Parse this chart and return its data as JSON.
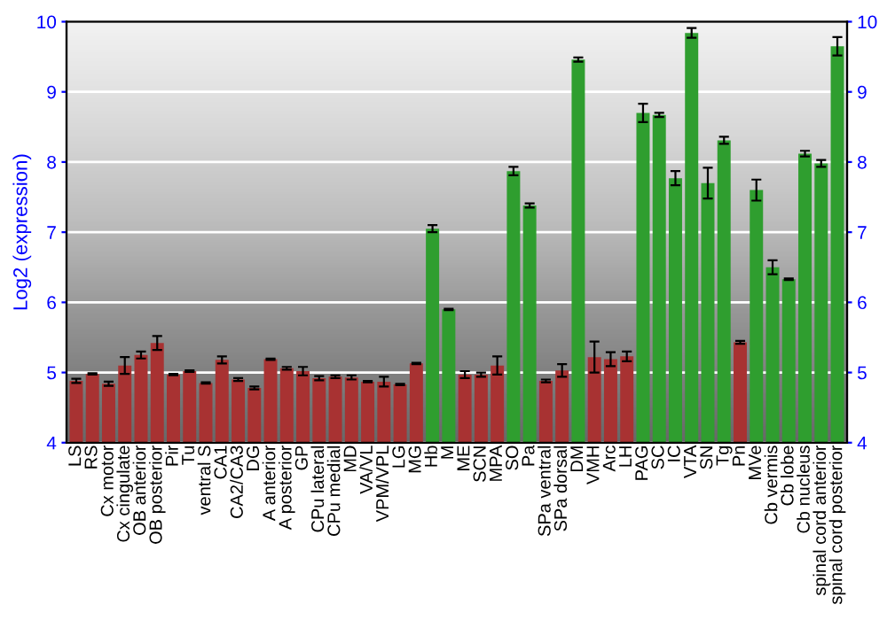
{
  "chart_data": {
    "type": "bar",
    "ylabel": "Log2 (expression)",
    "categories": [
      "LS",
      "RS",
      "Cx motor",
      "Cx cingulate",
      "OB anterior",
      "OB posterior",
      "Pir",
      "Tu",
      "ventral S",
      "CA1",
      "CA2/CA3",
      "DG",
      "A anterior",
      "A posterior",
      "GP",
      "CPu lateral",
      "CPu medial",
      "MD",
      "VA/VL",
      "VPM/VPL",
      "LG",
      "MG",
      "Hb",
      "M",
      "ME",
      "SCN",
      "MPA",
      "SO",
      "Pa",
      "SPa ventral",
      "SPa dorsal",
      "DM",
      "VMH",
      "Arc",
      "LH",
      "PAG",
      "SC",
      "IC",
      "VTA",
      "SN",
      "Tg",
      "Pn",
      "MVe",
      "Cb vermis",
      "Cb lobe",
      "Cb nucleus",
      "spinal cord anterior",
      "spinal cord posterior"
    ],
    "values": [
      4.88,
      4.98,
      4.84,
      5.1,
      5.25,
      5.42,
      4.97,
      5.02,
      4.85,
      5.18,
      4.9,
      4.78,
      5.19,
      5.06,
      5.02,
      4.92,
      4.94,
      4.93,
      4.87,
      4.87,
      4.83,
      5.13,
      7.05,
      5.9,
      4.97,
      4.97,
      5.1,
      7.87,
      7.38,
      4.88,
      5.03,
      9.46,
      5.22,
      5.19,
      5.23,
      8.7,
      8.67,
      7.77,
      9.84,
      7.7,
      8.31,
      5.43,
      7.6,
      6.5,
      6.33,
      8.12,
      7.98,
      9.65
    ],
    "errors": [
      0.03,
      0.01,
      0.03,
      0.12,
      0.05,
      0.1,
      0.01,
      0.01,
      0.01,
      0.05,
      0.02,
      0.02,
      0.01,
      0.02,
      0.06,
      0.03,
      0.02,
      0.03,
      0.01,
      0.07,
      0.01,
      0.01,
      0.05,
      0.01,
      0.05,
      0.03,
      0.13,
      0.06,
      0.03,
      0.02,
      0.09,
      0.03,
      0.22,
      0.1,
      0.07,
      0.13,
      0.03,
      0.1,
      0.07,
      0.22,
      0.05,
      0.02,
      0.15,
      0.1,
      0.01,
      0.04,
      0.05,
      0.13
    ],
    "colors": [
      "#a83232",
      "#a83232",
      "#a83232",
      "#a83232",
      "#a83232",
      "#a83232",
      "#a83232",
      "#a83232",
      "#a83232",
      "#a83232",
      "#a83232",
      "#a83232",
      "#a83232",
      "#a83232",
      "#a83232",
      "#a83232",
      "#a83232",
      "#a83232",
      "#a83232",
      "#a83232",
      "#a83232",
      "#a83232",
      "#2f9e2f",
      "#2f9e2f",
      "#a83232",
      "#a83232",
      "#a83232",
      "#2f9e2f",
      "#2f9e2f",
      "#a83232",
      "#a83232",
      "#2f9e2f",
      "#a83232",
      "#a83232",
      "#a83232",
      "#2f9e2f",
      "#2f9e2f",
      "#2f9e2f",
      "#2f9e2f",
      "#2f9e2f",
      "#2f9e2f",
      "#a83232",
      "#2f9e2f",
      "#2f9e2f",
      "#2f9e2f",
      "#2f9e2f",
      "#2f9e2f",
      "#2f9e2f"
    ],
    "ylim": [
      4,
      10
    ],
    "yticks": [
      4,
      5,
      6,
      7,
      8,
      9,
      10
    ],
    "y2lim": [
      4,
      10
    ],
    "y2ticks": [
      4,
      5,
      6,
      7,
      8,
      9,
      10
    ],
    "grid": "y"
  }
}
